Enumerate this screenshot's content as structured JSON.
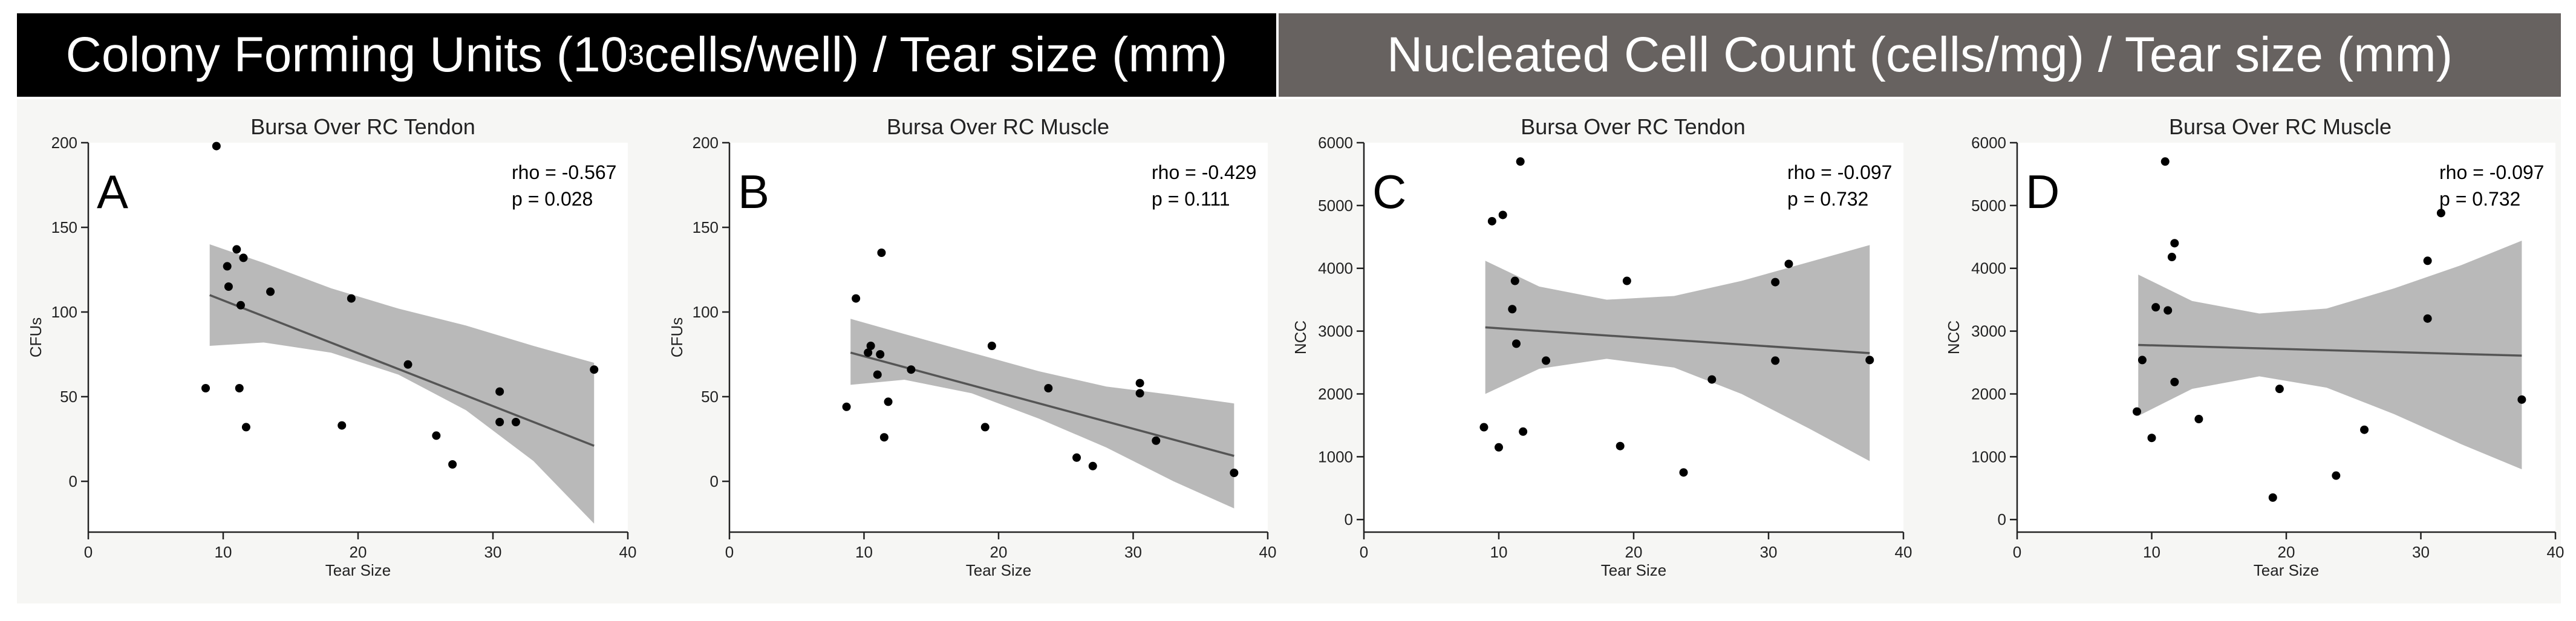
{
  "banners": {
    "left": {
      "prefix": "Colony Forming Units (10",
      "sup": "3",
      "suffix": " cells/well) / Tear size (mm)"
    },
    "right": {
      "text": "Nucleated Cell Count (cells/mg) / Tear size (mm)"
    }
  },
  "chart_data": [
    {
      "id": "A",
      "type": "scatter",
      "title": "Bursa Over RC Tendon",
      "xlabel": "Tear Size",
      "ylabel": "CFUs",
      "xlim": [
        0,
        40
      ],
      "ylim": [
        -30,
        200
      ],
      "xticks": [
        0,
        10,
        20,
        30,
        40
      ],
      "yticks": [
        0,
        50,
        100,
        150,
        200
      ],
      "rho": "rho = -0.567",
      "p": "p = 0.028",
      "points": [
        [
          9.5,
          198
        ],
        [
          11,
          137
        ],
        [
          10.3,
          127
        ],
        [
          11.5,
          132
        ],
        [
          10.4,
          115
        ],
        [
          11.3,
          104
        ],
        [
          13.5,
          112
        ],
        [
          19.5,
          108
        ],
        [
          8.7,
          55
        ],
        [
          11.2,
          55
        ],
        [
          11.7,
          32
        ],
        [
          18.8,
          33
        ],
        [
          23.7,
          69
        ],
        [
          25.8,
          27
        ],
        [
          27,
          10
        ],
        [
          30.5,
          53
        ],
        [
          30.5,
          35
        ],
        [
          31.7,
          35
        ],
        [
          37.5,
          66
        ]
      ],
      "fit": [
        [
          9,
          110
        ],
        [
          37.5,
          21
        ]
      ],
      "ci_upper": [
        [
          9,
          140
        ],
        [
          13,
          129
        ],
        [
          18,
          114
        ],
        [
          23,
          102
        ],
        [
          28,
          92
        ],
        [
          33,
          80
        ],
        [
          37.5,
          70
        ]
      ],
      "ci_lower": [
        [
          9,
          80
        ],
        [
          13,
          82
        ],
        [
          18,
          76
        ],
        [
          23,
          63
        ],
        [
          28,
          42
        ],
        [
          33,
          12
        ],
        [
          37.5,
          -25
        ]
      ]
    },
    {
      "id": "B",
      "type": "scatter",
      "title": "Bursa Over RC Muscle",
      "xlabel": "Tear Size",
      "ylabel": "CFUs",
      "xlim": [
        0,
        40
      ],
      "ylim": [
        -30,
        200
      ],
      "xticks": [
        0,
        10,
        20,
        30,
        40
      ],
      "yticks": [
        0,
        50,
        100,
        150,
        200
      ],
      "rho": "rho = -0.429",
      "p": "p = 0.111",
      "points": [
        [
          11.3,
          135
        ],
        [
          9.4,
          108
        ],
        [
          10.3,
          76
        ],
        [
          10.5,
          80
        ],
        [
          11.2,
          75
        ],
        [
          11,
          63
        ],
        [
          13.5,
          66
        ],
        [
          11.8,
          47
        ],
        [
          11.5,
          26
        ],
        [
          8.7,
          44
        ],
        [
          19.5,
          80
        ],
        [
          19,
          32
        ],
        [
          23.7,
          55
        ],
        [
          25.8,
          14
        ],
        [
          27,
          9
        ],
        [
          30.5,
          58
        ],
        [
          30.5,
          52
        ],
        [
          31.7,
          24
        ],
        [
          37.5,
          5
        ]
      ],
      "fit": [
        [
          9,
          76
        ],
        [
          37.5,
          15
        ]
      ],
      "ci_upper": [
        [
          9,
          96
        ],
        [
          13,
          87
        ],
        [
          18,
          76
        ],
        [
          23,
          65
        ],
        [
          28,
          56
        ],
        [
          33,
          51
        ],
        [
          37.5,
          46
        ]
      ],
      "ci_lower": [
        [
          9,
          57
        ],
        [
          13,
          60
        ],
        [
          18,
          52
        ],
        [
          23,
          37
        ],
        [
          28,
          20
        ],
        [
          33,
          0
        ],
        [
          37.5,
          -16
        ]
      ]
    },
    {
      "id": "C",
      "type": "scatter",
      "title": "Bursa Over RC Tendon",
      "xlabel": "Tear Size",
      "ylabel": "NCC",
      "xlim": [
        0,
        40
      ],
      "ylim": [
        -200,
        6000
      ],
      "xticks": [
        0,
        10,
        20,
        30,
        40
      ],
      "yticks": [
        0,
        1000,
        2000,
        3000,
        4000,
        5000,
        6000
      ],
      "rho": "rho = -0.097",
      "p": "p =  0.732",
      "points": [
        [
          11.6,
          5700
        ],
        [
          10.3,
          4850
        ],
        [
          9.5,
          4750
        ],
        [
          11.2,
          3800
        ],
        [
          11,
          3350
        ],
        [
          11.3,
          2800
        ],
        [
          13.5,
          2530
        ],
        [
          8.9,
          1470
        ],
        [
          10,
          1150
        ],
        [
          11.8,
          1400
        ],
        [
          19.5,
          3800
        ],
        [
          19,
          1170
        ],
        [
          23.7,
          750
        ],
        [
          25.8,
          2230
        ],
        [
          30.5,
          3780
        ],
        [
          31.5,
          4070
        ],
        [
          30.5,
          2530
        ],
        [
          37.5,
          2540
        ]
      ],
      "fit": [
        [
          9,
          3060
        ],
        [
          37.5,
          2650
        ]
      ],
      "ci_upper": [
        [
          9,
          4120
        ],
        [
          13,
          3710
        ],
        [
          18,
          3500
        ],
        [
          23,
          3560
        ],
        [
          28,
          3800
        ],
        [
          33,
          4100
        ],
        [
          37.5,
          4370
        ]
      ],
      "ci_lower": [
        [
          9,
          2000
        ],
        [
          13,
          2400
        ],
        [
          18,
          2560
        ],
        [
          23,
          2420
        ],
        [
          28,
          2000
        ],
        [
          33,
          1450
        ],
        [
          37.5,
          930
        ]
      ]
    },
    {
      "id": "D",
      "type": "scatter",
      "title": "Bursa Over RC Muscle",
      "xlabel": "Tear Size",
      "ylabel": "NCC",
      "xlim": [
        0,
        40
      ],
      "ylim": [
        -200,
        6000
      ],
      "xticks": [
        0,
        10,
        20,
        30,
        40
      ],
      "yticks": [
        0,
        1000,
        2000,
        3000,
        4000,
        5000,
        6000
      ],
      "rho": "rho = -0.097",
      "p": "p = 0.732",
      "points": [
        [
          11,
          5700
        ],
        [
          11.7,
          4400
        ],
        [
          11.5,
          4180
        ],
        [
          10.3,
          3380
        ],
        [
          11.2,
          3330
        ],
        [
          9.3,
          2540
        ],
        [
          11.7,
          2190
        ],
        [
          8.9,
          1720
        ],
        [
          10,
          1300
        ],
        [
          13.5,
          1600
        ],
        [
          19,
          350
        ],
        [
          19.5,
          2080
        ],
        [
          23.7,
          700
        ],
        [
          25.8,
          1430
        ],
        [
          30.5,
          4120
        ],
        [
          31.5,
          4880
        ],
        [
          30.5,
          3200
        ],
        [
          37.5,
          1910
        ]
      ],
      "fit": [
        [
          9,
          2780
        ],
        [
          37.5,
          2610
        ]
      ],
      "ci_upper": [
        [
          9,
          3900
        ],
        [
          13,
          3480
        ],
        [
          18,
          3280
        ],
        [
          23,
          3360
        ],
        [
          28,
          3680
        ],
        [
          33,
          4050
        ],
        [
          37.5,
          4440
        ]
      ],
      "ci_lower": [
        [
          9,
          1650
        ],
        [
          13,
          2080
        ],
        [
          18,
          2280
        ],
        [
          23,
          2100
        ],
        [
          28,
          1680
        ],
        [
          33,
          1200
        ],
        [
          37.5,
          800
        ]
      ]
    }
  ]
}
